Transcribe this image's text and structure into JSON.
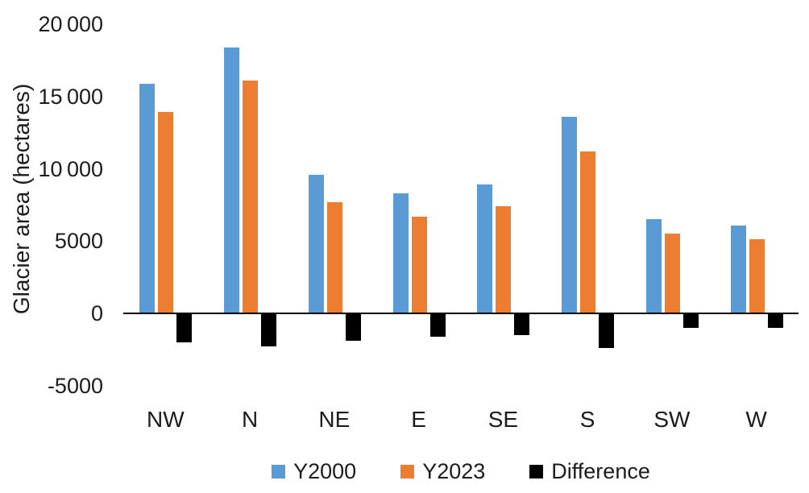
{
  "chart_data": {
    "type": "bar",
    "title": "",
    "xlabel": "",
    "ylabel": "Glacier area (hectares)",
    "categories": [
      "NW",
      "N",
      "NE",
      "E",
      "SE",
      "S",
      "SW",
      "W"
    ],
    "series": [
      {
        "name": "Y2000",
        "color": "#5B9BD5",
        "values": [
          15900,
          18400,
          9600,
          8300,
          8900,
          13600,
          6500,
          6100
        ]
      },
      {
        "name": "Y2023",
        "color": "#ED7D31",
        "values": [
          13900,
          16100,
          7700,
          6700,
          7400,
          11200,
          5500,
          5100
        ]
      },
      {
        "name": "Difference",
        "color": "#000000",
        "values": [
          -2000,
          -2300,
          -1900,
          -1600,
          -1500,
          -2400,
          -1000,
          -1000
        ]
      }
    ],
    "ylim": [
      -5000,
      20000
    ],
    "ytick_interval": 5000,
    "yticks": [
      {
        "value": 20000,
        "label": "20 000"
      },
      {
        "value": 15000,
        "label": "15 000"
      },
      {
        "value": 10000,
        "label": "10 000"
      },
      {
        "value": 5000,
        "label": "5000"
      },
      {
        "value": 0,
        "label": "0"
      },
      {
        "value": -5000,
        "label": "-5000"
      }
    ],
    "grid": false,
    "legend_position": "bottom",
    "axis_line_color": "#000000",
    "text_color": "#1c1c1c"
  }
}
